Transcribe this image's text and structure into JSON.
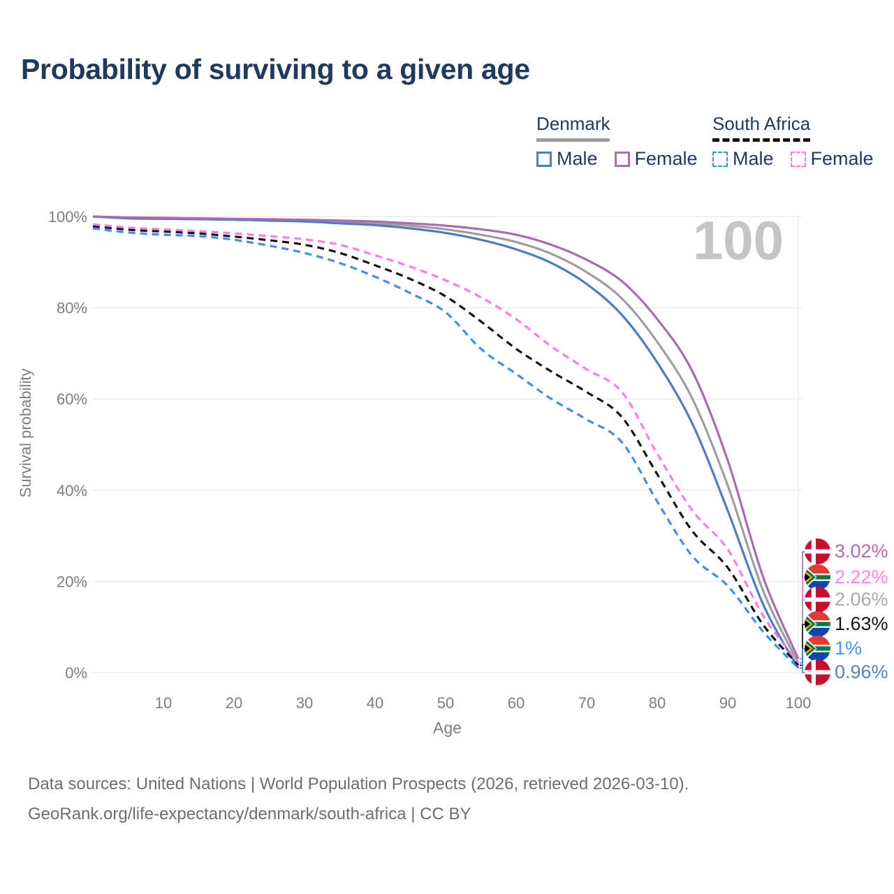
{
  "title": "Probability of surviving to a given age",
  "legend": {
    "denmark": {
      "label": "Denmark",
      "male_label": "Male",
      "female_label": "Female",
      "line_style": "solid",
      "group_line_color": "#9e9e9e",
      "male_color": "#4d7cc7",
      "female_color": "#b06fb5"
    },
    "south_africa": {
      "label": "South Africa",
      "male_label": "Male",
      "female_label": "Female",
      "line_style": "dashed",
      "group_line_color": "#141414",
      "male_color": "#3f8ef5",
      "female_color": "#ff7ce3"
    }
  },
  "chart_data": {
    "type": "line",
    "title": "Probability of surviving to a given age",
    "xlabel": "Age",
    "ylabel": "Survival probability",
    "xlim": [
      0,
      100
    ],
    "ylim": [
      0,
      100
    ],
    "x_ticks": [
      10,
      20,
      30,
      40,
      50,
      60,
      70,
      80,
      90,
      100
    ],
    "y_ticks": [
      0,
      20,
      40,
      60,
      80,
      100
    ],
    "y_tick_suffix": "%",
    "grid": "horizontal",
    "watermark": "100",
    "legend_position": "top-right",
    "ages": [
      0,
      5,
      10,
      15,
      20,
      25,
      30,
      35,
      40,
      45,
      50,
      55,
      60,
      65,
      70,
      75,
      80,
      85,
      90,
      95,
      100
    ],
    "series": [
      {
        "name": "Denmark Total",
        "country": "Denmark",
        "sex": "total",
        "color": "#9e9e9e",
        "dash": false,
        "end_label": "2.06%",
        "values": [
          100,
          99.7,
          99.6,
          99.5,
          99.4,
          99.25,
          99.1,
          98.8,
          98.5,
          98.0,
          97.2,
          96.0,
          94.4,
          91.8,
          87.8,
          82.0,
          72.5,
          60.0,
          41.0,
          18.0,
          2.06
        ]
      },
      {
        "name": "Denmark Male",
        "country": "Denmark",
        "sex": "male",
        "color": "#4d7cc7",
        "dash": false,
        "end_label": "0.96%",
        "values": [
          100,
          99.6,
          99.5,
          99.4,
          99.3,
          99.1,
          98.9,
          98.5,
          98.1,
          97.4,
          96.4,
          94.9,
          92.8,
          89.8,
          85.2,
          78.4,
          68.0,
          54.5,
          35.5,
          15.0,
          0.96
        ]
      },
      {
        "name": "Denmark Female",
        "country": "Denmark",
        "sex": "female",
        "color": "#a96ab0",
        "dash": false,
        "end_label": "3.02%",
        "values": [
          100,
          99.8,
          99.7,
          99.6,
          99.5,
          99.4,
          99.3,
          99.1,
          98.9,
          98.5,
          98.0,
          97.2,
          96.0,
          93.8,
          90.5,
          85.8,
          77.5,
          66.0,
          46.5,
          21.0,
          3.02
        ]
      },
      {
        "name": "South Africa Male",
        "country": "South Africa",
        "sex": "male",
        "color": "#3f8ef5",
        "dash": true,
        "end_label": "1%",
        "values": [
          97.4,
          96.5,
          96.0,
          95.7,
          94.9,
          93.6,
          92.0,
          89.8,
          86.8,
          83.2,
          79.0,
          71.0,
          65.5,
          60.0,
          55.5,
          50.5,
          37.5,
          25.5,
          19.0,
          9.0,
          1.0
        ]
      },
      {
        "name": "South Africa Total",
        "country": "South Africa",
        "sex": "total",
        "color": "#141414",
        "dash": true,
        "end_label": "1.63%",
        "values": [
          97.9,
          97.1,
          96.7,
          96.3,
          95.6,
          94.8,
          93.8,
          92.0,
          89.3,
          86.3,
          82.5,
          77.0,
          71.0,
          66.0,
          61.5,
          56.0,
          43.5,
          31.0,
          23.0,
          10.5,
          1.63
        ]
      },
      {
        "name": "South Africa Female",
        "country": "South Africa",
        "sex": "female",
        "color": "#ff7ce3",
        "dash": true,
        "end_label": "2.22%",
        "values": [
          98.3,
          97.6,
          97.2,
          96.8,
          96.3,
          95.7,
          95.0,
          93.8,
          91.5,
          89.0,
          86.0,
          82.3,
          77.5,
          71.5,
          66.5,
          61.5,
          48.0,
          35.5,
          27.0,
          12.5,
          2.22
        ]
      }
    ]
  },
  "end_labels": [
    {
      "flag": "denmark",
      "text": "3.02%",
      "color": "#b469b4",
      "series": "Denmark Female"
    },
    {
      "flag": "south-africa",
      "text": "2.22%",
      "color": "#ff87e3",
      "series": "South Africa Female"
    },
    {
      "flag": "denmark",
      "text": "2.06%",
      "color": "#a8a8a8",
      "series": "Denmark Total"
    },
    {
      "flag": "south-africa",
      "text": "1.63%",
      "color": "#151515",
      "series": "South Africa Total"
    },
    {
      "flag": "south-africa",
      "text": "1%",
      "color": "#4a90f0",
      "series": "South Africa Male"
    },
    {
      "flag": "denmark",
      "text": "0.96%",
      "color": "#5b7fc4",
      "series": "Denmark Male"
    }
  ],
  "footer": {
    "line1": "Data sources: United Nations | World Population Prospects (2026, retrieved 2026-03-10).",
    "line2": "GeoRank.org/life-expectancy/denmark/south-africa | CC BY"
  },
  "colors": {
    "title_text": "#20395e",
    "axis_text": "#7d7d7d",
    "gridline": "#e9e9e9",
    "watermark": "#c5c5c5",
    "footer_text": "#6e6e6e"
  }
}
